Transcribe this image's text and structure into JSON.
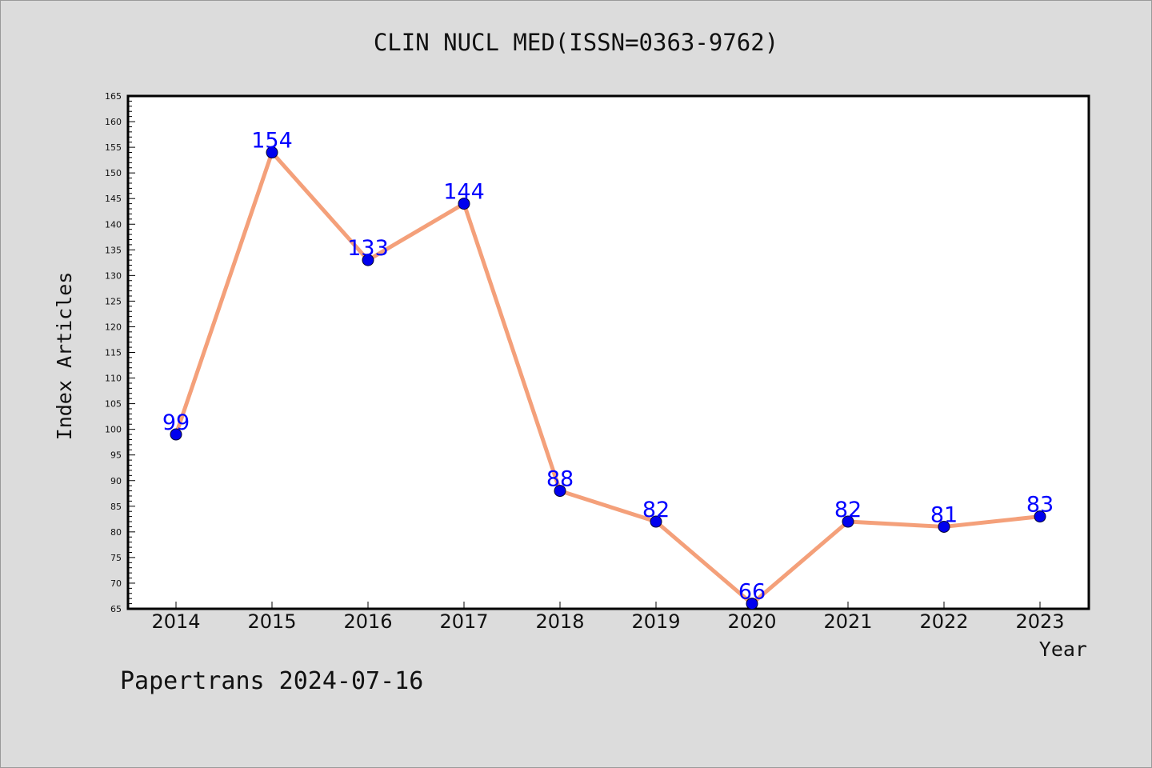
{
  "title": "CLIN NUCL MED(ISSN=0363-9762)",
  "footer": "Papertrans 2024-07-16",
  "colors": {
    "background": "#dcdcdc",
    "plot_background": "#ffffff",
    "line": "#f4a07a",
    "marker": "#0000ee",
    "marker_edge": "#000033",
    "data_label": "#0000ff"
  },
  "chart_data": {
    "type": "line",
    "xlabel": "Year",
    "ylabel": "Index Articles",
    "categories": [
      "2014",
      "2015",
      "2016",
      "2017",
      "2018",
      "2019",
      "2020",
      "2021",
      "2022",
      "2023"
    ],
    "values": [
      99,
      154,
      133,
      144,
      88,
      82,
      66,
      82,
      81,
      83
    ],
    "ylim": [
      65,
      165
    ],
    "yticks": [
      65,
      70,
      75,
      80,
      85,
      90,
      95,
      100,
      105,
      110,
      115,
      120,
      125,
      130,
      135,
      140,
      145,
      150,
      155,
      160,
      165
    ],
    "grid": false,
    "legend": "none",
    "data_labels": true
  }
}
